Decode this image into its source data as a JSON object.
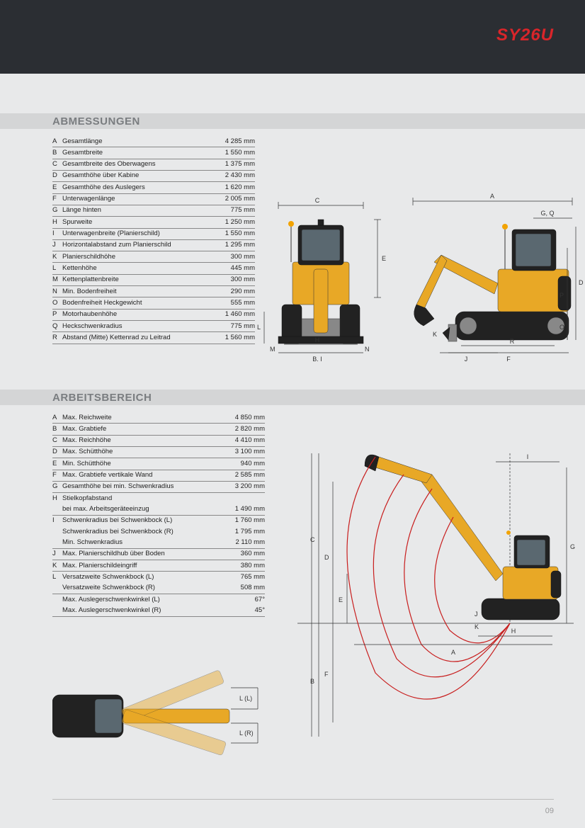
{
  "header": {
    "model": "SY26U"
  },
  "page_number": "09",
  "colors": {
    "accent_red": "#d9252a",
    "header_bg": "#2b2e33",
    "page_bg": "#e8e9ea",
    "title_bar_bg": "#d4d5d6",
    "title_text": "#7a7d80",
    "excavator_yellow": "#e8a826",
    "arc_red": "#c81e1e"
  },
  "section1": {
    "title": "ABMESSUNGEN",
    "rows": [
      {
        "k": "A",
        "l": "Gesamtlänge",
        "v": "4 285 mm"
      },
      {
        "k": "B",
        "l": "Gesamtbreite",
        "v": "1 550 mm"
      },
      {
        "k": "C",
        "l": "Gesamtbreite des Oberwagens",
        "v": "1 375 mm"
      },
      {
        "k": "D",
        "l": "Gesamthöhe über Kabine",
        "v": "2 430 mm"
      },
      {
        "k": "E",
        "l": "Gesamthöhe des Auslegers",
        "v": "1 620 mm"
      },
      {
        "k": "F",
        "l": "Unterwagenlänge",
        "v": "2 005 mm"
      },
      {
        "k": "G",
        "l": "Länge hinten",
        "v": "775 mm"
      },
      {
        "k": "H",
        "l": "Spurweite",
        "v": "1 250 mm"
      },
      {
        "k": "I",
        "l": "Unterwagenbreite (Planierschild)",
        "v": "1 550 mm"
      },
      {
        "k": "J",
        "l": "Horizontalabstand zum Planierschild",
        "v": "1 295 mm"
      },
      {
        "k": "K",
        "l": "Planierschildhöhe",
        "v": "300 mm"
      },
      {
        "k": "L",
        "l": "Kettenhöhe",
        "v": "445 mm"
      },
      {
        "k": "M",
        "l": "Kettenplattenbreite",
        "v": "300 mm"
      },
      {
        "k": "N",
        "l": "Min. Bodenfreiheit",
        "v": "290 mm"
      },
      {
        "k": "O",
        "l": "Bodenfreiheit Heckgewicht",
        "v": "555 mm"
      },
      {
        "k": "P",
        "l": "Motorhaubenhöhe",
        "v": "1 460 mm"
      },
      {
        "k": "Q",
        "l": "Heckschwenkradius",
        "v": "775 mm"
      },
      {
        "k": "R",
        "l": "Abstand (Mitte) Kettenrad zu Leitrad",
        "v": "1 560 mm"
      }
    ],
    "diagram_letters": [
      "A",
      "B, I",
      "C",
      "D",
      "E",
      "F",
      "G, Q",
      "H",
      "J",
      "K",
      "L",
      "M",
      "N",
      "O",
      "P",
      "R"
    ]
  },
  "section2": {
    "title": "ARBEITSBEREICH",
    "rows": [
      {
        "k": "A",
        "l": "Max. Reichweite",
        "v": "4 850 mm"
      },
      {
        "k": "B",
        "l": "Max. Grabtiefe",
        "v": "2 820 mm"
      },
      {
        "k": "C",
        "l": "Max. Reichhöhe",
        "v": "4 410 mm"
      },
      {
        "k": "D",
        "l": "Max. Schütthöhe",
        "v": "3 100 mm"
      },
      {
        "k": "E",
        "l": "Min. Schütthöhe",
        "v": "940 mm"
      },
      {
        "k": "F",
        "l": "Max. Grabtiefe vertikale Wand",
        "v": "2 585 mm"
      },
      {
        "k": "G",
        "l": "Gesamthöhe bei min. Schwenkradius",
        "v": "3 200 mm"
      }
    ],
    "multirows": [
      {
        "k": "H",
        "lines": [
          {
            "l": "Stielkopfabstand",
            "v": ""
          },
          {
            "l": "bei max. Arbeitsgeräteeinzug",
            "v": "1 490 mm"
          }
        ]
      },
      {
        "k": "I",
        "lines": [
          {
            "l": "Schwenkradius bei Schwenkbock (L)",
            "v": "1 760 mm"
          },
          {
            "l": "Schwenkradius bei Schwenkbock (R)",
            "v": "1 795 mm"
          },
          {
            "l": "Min. Schwenkradius",
            "v": "2 110 mm"
          }
        ]
      },
      {
        "k": "J",
        "lines": [
          {
            "l": "Max. Planierschildhub über Boden",
            "v": "360 mm"
          }
        ]
      },
      {
        "k": "K",
        "lines": [
          {
            "l": "Max. Planierschildeingriff",
            "v": "380 mm"
          }
        ]
      },
      {
        "k": "L",
        "lines": [
          {
            "l": "Versatzweite Schwenkbock (L)",
            "v": "765 mm"
          },
          {
            "l": "Versatzweite Schwenkbock (R)",
            "v": "508 mm"
          }
        ]
      },
      {
        "k": "",
        "lines": [
          {
            "l": "Max. Auslegerschwenkwinkel (L)",
            "v": "67°"
          },
          {
            "l": "Max. Auslegerschwenkwinkel (R)",
            "v": "45°"
          }
        ]
      }
    ],
    "diagram_letters": [
      "A",
      "B",
      "C",
      "D",
      "E",
      "F",
      "G",
      "H",
      "I",
      "J",
      "K"
    ],
    "swing_labels": [
      "L (L)",
      "L (R)"
    ]
  }
}
